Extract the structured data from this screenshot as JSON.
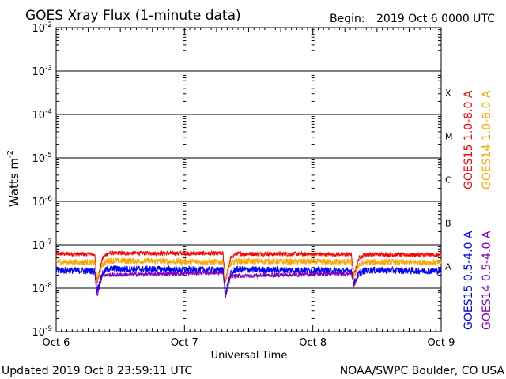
{
  "chart_data": {
    "type": "line",
    "title": "GOES Xray Flux (1-minute data)",
    "begin_label": "Begin:",
    "begin_value": "2019 Oct 6 0000 UTC",
    "ylabel_text": "Watts m",
    "ylabel_sup": "-2",
    "xlabel": "Universal Time",
    "footer_left": "Updated 2019 Oct  8 23:59:11 UTC",
    "footer_right": "NOAA/SWPC Boulder, CO USA",
    "y_scale": "log",
    "ylim": [
      1e-09,
      0.01
    ],
    "y_ticks": [
      {
        "value": 0.01,
        "label": "10",
        "exp": "-2"
      },
      {
        "value": 0.001,
        "label": "10",
        "exp": "-3"
      },
      {
        "value": 0.0001,
        "label": "10",
        "exp": "-4"
      },
      {
        "value": 1e-05,
        "label": "10",
        "exp": "-5"
      },
      {
        "value": 1e-06,
        "label": "10",
        "exp": "-6"
      },
      {
        "value": 1e-07,
        "label": "10",
        "exp": "-7"
      },
      {
        "value": 1e-08,
        "label": "10",
        "exp": "-8"
      },
      {
        "value": 1e-09,
        "label": "10",
        "exp": "-9"
      }
    ],
    "x_ticks": [
      "Oct 6",
      "Oct 7",
      "Oct 8",
      "Oct 9"
    ],
    "xlim_days": [
      0,
      3
    ],
    "flare_classes": [
      {
        "label": "X",
        "value": 0.000316
      },
      {
        "label": "M",
        "value": 3.16e-05
      },
      {
        "label": "C",
        "value": 3.16e-06
      },
      {
        "label": "B",
        "value": 3.16e-07
      },
      {
        "label": "A",
        "value": 3.16e-08
      }
    ],
    "grid_lines": [
      0.001,
      0.0001,
      1e-05,
      1e-06,
      1e-07,
      1e-08
    ],
    "series": [
      {
        "name": "GOES15 1.0-8.0 A",
        "color": "#ff0000",
        "base": 6.2e-08,
        "noise": 0.05,
        "points": [
          [
            0,
            6.2e-08
          ],
          [
            0.3,
            6e-08
          ],
          [
            0.32,
            1.4e-08
          ],
          [
            0.36,
            4.8e-08
          ],
          [
            0.4,
            6.4e-08
          ],
          [
            1.3,
            6.3e-08
          ],
          [
            1.32,
            1.5e-08
          ],
          [
            1.36,
            5e-08
          ],
          [
            1.4,
            6.2e-08
          ],
          [
            2.3,
            6e-08
          ],
          [
            2.32,
            2e-08
          ],
          [
            2.36,
            5e-08
          ],
          [
            2.42,
            6e-08
          ],
          [
            3.0,
            5.8e-08
          ]
        ]
      },
      {
        "name": "GOES14 1.0-8.0 A",
        "color": "#ffa500",
        "base": 4e-08,
        "noise": 0.07,
        "points": [
          [
            0,
            4.1e-08
          ],
          [
            0.3,
            3.9e-08
          ],
          [
            0.32,
            1.6e-08
          ],
          [
            0.36,
            3.5e-08
          ],
          [
            0.4,
            4.3e-08
          ],
          [
            1.3,
            4e-08
          ],
          [
            1.32,
            1.5e-08
          ],
          [
            1.36,
            3.6e-08
          ],
          [
            1.4,
            4.2e-08
          ],
          [
            2.3,
            4e-08
          ],
          [
            2.32,
            1.8e-08
          ],
          [
            2.36,
            3.5e-08
          ],
          [
            2.42,
            4e-08
          ],
          [
            3.0,
            3.9e-08
          ]
        ]
      },
      {
        "name": "GOES15 0.5-4.0 A",
        "color": "#0000ff",
        "base": 2.6e-08,
        "noise": 0.08,
        "points": [
          [
            0,
            2.6e-08
          ],
          [
            0.3,
            2.5e-08
          ],
          [
            0.32,
            9e-09
          ],
          [
            0.36,
            2.2e-08
          ],
          [
            0.4,
            2.8e-08
          ],
          [
            1.3,
            2.6e-08
          ],
          [
            1.32,
            8e-09
          ],
          [
            1.36,
            2.1e-08
          ],
          [
            1.4,
            2.7e-08
          ],
          [
            2.3,
            2.5e-08
          ],
          [
            2.32,
            1.3e-08
          ],
          [
            2.36,
            2.2e-08
          ],
          [
            2.42,
            2.6e-08
          ],
          [
            3.0,
            2.5e-08
          ]
        ]
      },
      {
        "name": "GOES14 0.5-4.0 A",
        "color": "#8000c0",
        "base": 2.4e-08,
        "noise": 0.05,
        "points": [
          [
            0.3,
            2.3e-08
          ],
          [
            0.32,
            7e-09
          ],
          [
            0.36,
            2e-08
          ],
          [
            1.3,
            2.3e-08
          ],
          [
            1.32,
            6e-09
          ],
          [
            1.36,
            1.9e-08
          ],
          [
            2.3,
            2.2e-08
          ],
          [
            2.32,
            1.2e-08
          ],
          [
            2.36,
            2e-08
          ]
        ]
      }
    ]
  }
}
